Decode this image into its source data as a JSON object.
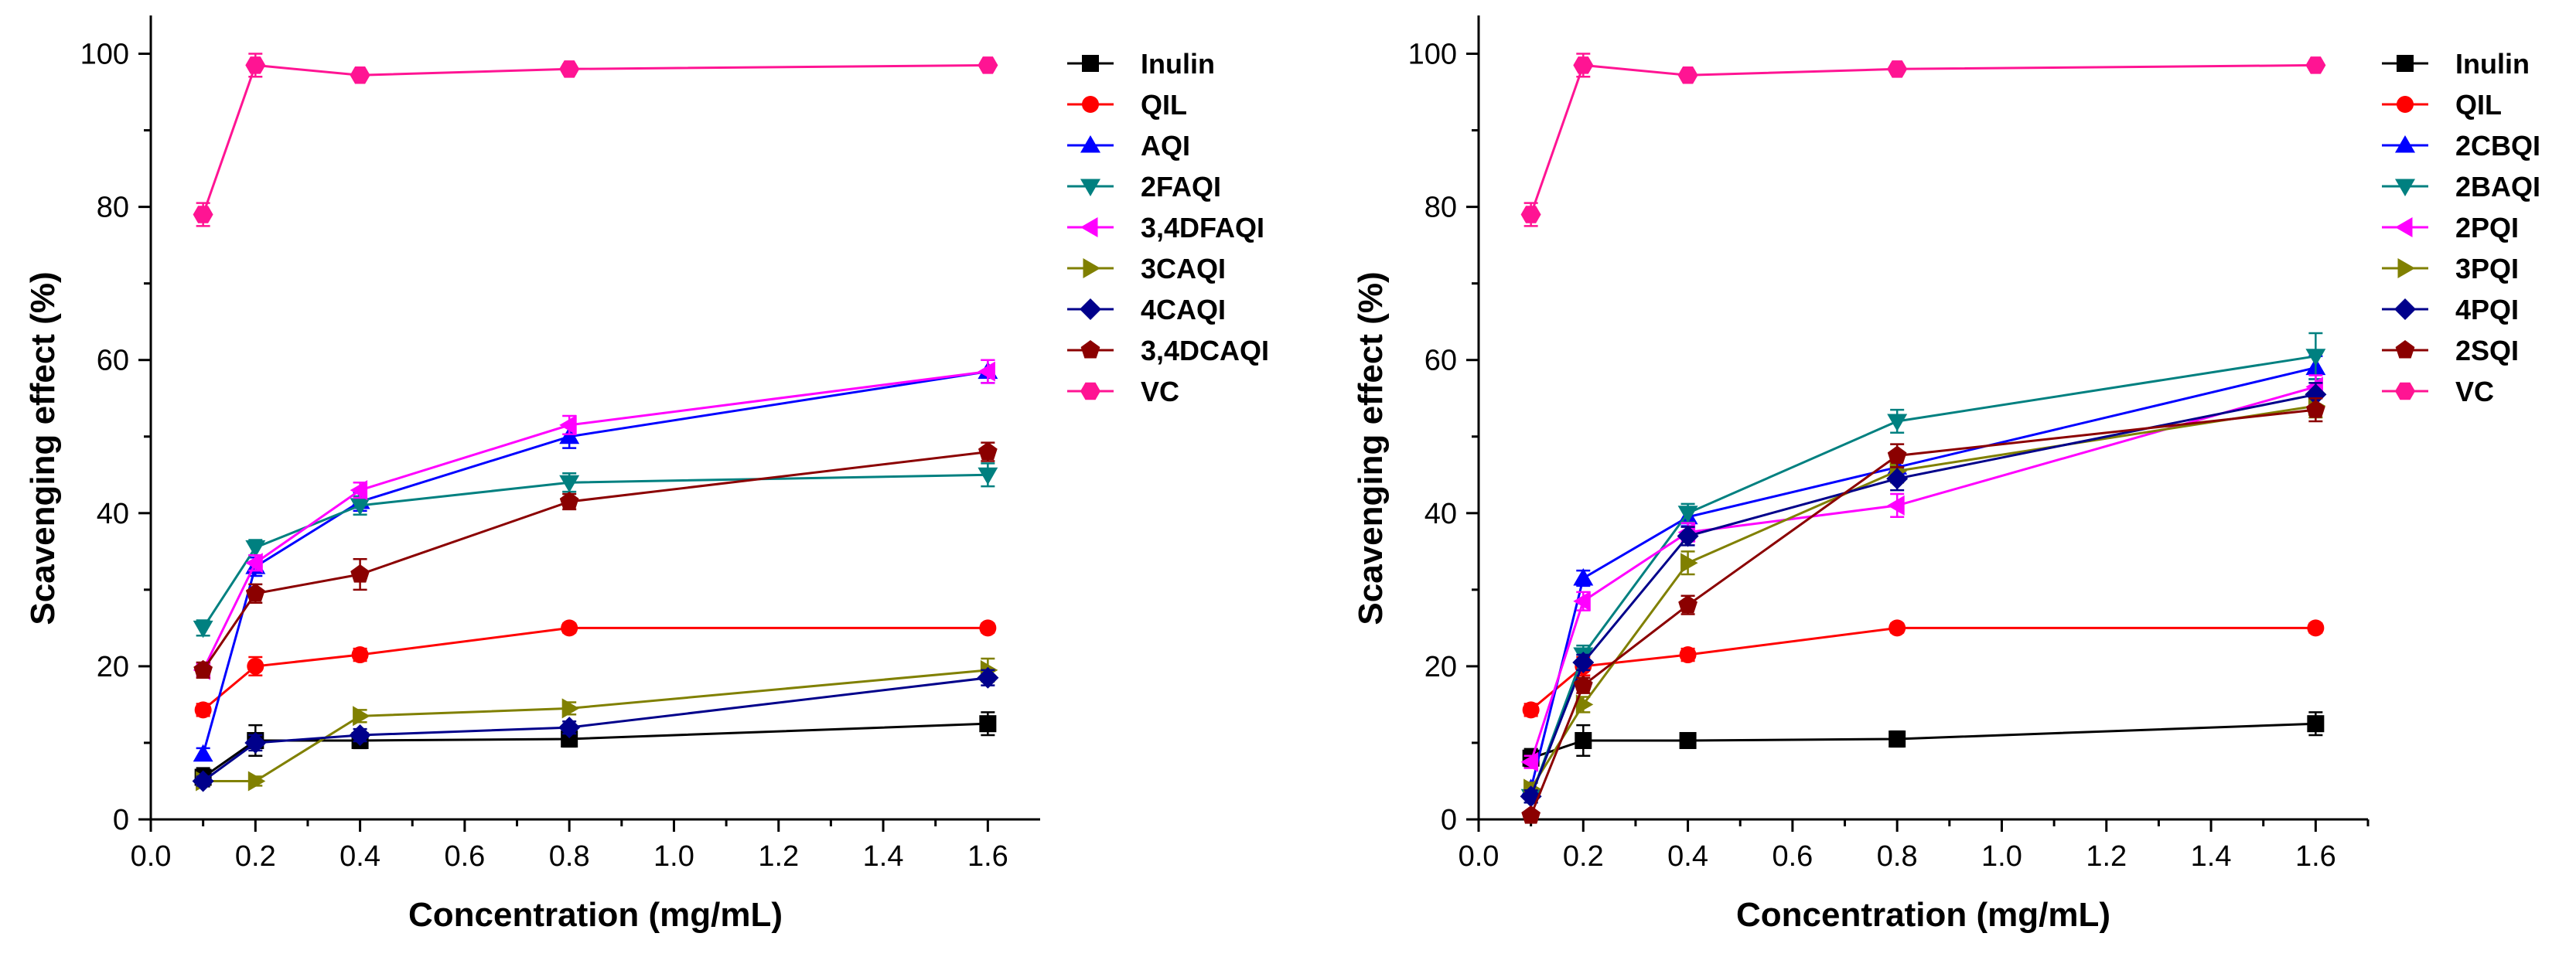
{
  "chart_data": [
    {
      "type": "line",
      "xlabel": "Concentration (mg/mL)",
      "ylabel": "Scavenging effect (%)",
      "xlim": [
        0.0,
        1.7
      ],
      "ylim": [
        0,
        105
      ],
      "xticks": [
        0.0,
        0.2,
        0.4,
        0.6,
        0.8,
        1.0,
        1.2,
        1.4,
        1.6
      ],
      "xtick_labels": [
        "0.0",
        "0.2",
        "0.4",
        "0.6",
        "0.8",
        "1.0",
        "1.2",
        "1.4",
        "1.6"
      ],
      "yticks": [
        0,
        20,
        40,
        60,
        80,
        100
      ],
      "ytick_labels": [
        "0",
        "20",
        "40",
        "60",
        "80",
        "100"
      ],
      "legend_position": "right",
      "x": [
        0.1,
        0.2,
        0.4,
        0.8,
        1.6
      ],
      "series": [
        {
          "name": "Inulin",
          "color": "#000000",
          "marker": "square",
          "values": [
            5.5,
            10.3,
            10.3,
            10.5,
            12.5
          ],
          "errors": [
            1.2,
            2.0,
            1.0,
            1.0,
            1.5
          ]
        },
        {
          "name": "QIL",
          "color": "#ff0000",
          "marker": "circle",
          "values": [
            14.3,
            20.0,
            21.5,
            25.0,
            25.0
          ],
          "errors": [
            0.8,
            1.2,
            0.8,
            0.6,
            0.6
          ]
        },
        {
          "name": "AQI",
          "color": "#0000ff",
          "marker": "triangle-up",
          "values": [
            8.5,
            33.0,
            41.5,
            50.0,
            58.5
          ],
          "errors": [
            0.8,
            1.2,
            1.2,
            1.5,
            1.5
          ]
        },
        {
          "name": "2FAQI",
          "color": "#008080",
          "marker": "triangle-down",
          "values": [
            25.0,
            35.5,
            41.0,
            44.0,
            45.0
          ],
          "errors": [
            1.0,
            1.0,
            1.2,
            1.2,
            1.5
          ]
        },
        {
          "name": "3,4DFAQI",
          "color": "#ff00ff",
          "marker": "triangle-left",
          "values": [
            19.5,
            33.5,
            43.0,
            51.5,
            58.5
          ],
          "errors": [
            0.8,
            1.0,
            1.0,
            1.2,
            1.5
          ]
        },
        {
          "name": "3CAQI",
          "color": "#808000",
          "marker": "triangle-right",
          "values": [
            5.0,
            5.0,
            13.5,
            14.5,
            19.5
          ],
          "errors": [
            0.6,
            0.6,
            0.8,
            0.8,
            1.5
          ]
        },
        {
          "name": "4CAQI",
          "color": "#00008b",
          "marker": "diamond",
          "values": [
            5.0,
            10.0,
            11.0,
            12.0,
            18.5
          ],
          "errors": [
            0.6,
            1.0,
            0.8,
            0.8,
            1.0
          ]
        },
        {
          "name": "3,4DCAQI",
          "color": "#8b0000",
          "marker": "pentagon",
          "values": [
            19.5,
            29.5,
            32.0,
            41.5,
            48.0
          ],
          "errors": [
            1.0,
            1.2,
            2.0,
            1.0,
            1.2
          ]
        },
        {
          "name": "VC",
          "color": "#ff1493",
          "marker": "hexagon",
          "values": [
            79.0,
            98.5,
            97.2,
            98.0,
            98.5
          ],
          "errors": [
            1.5,
            1.5,
            0.6,
            0.6,
            0.6
          ]
        }
      ]
    },
    {
      "type": "line",
      "xlabel": "Concentration (mg/mL)",
      "ylabel": "Scavenging effect (%)",
      "xlim": [
        0.0,
        1.7
      ],
      "ylim": [
        0,
        105
      ],
      "xticks": [
        0.0,
        0.2,
        0.4,
        0.6,
        0.8,
        1.0,
        1.2,
        1.4,
        1.6
      ],
      "xtick_labels": [
        "0.0",
        "0.2",
        "0.4",
        "0.6",
        "0.8",
        "1.0",
        "1.2",
        "1.4",
        "1.6"
      ],
      "yticks": [
        0,
        20,
        40,
        60,
        80,
        100
      ],
      "ytick_labels": [
        "0",
        "20",
        "40",
        "60",
        "80",
        "100"
      ],
      "legend_position": "right",
      "x": [
        0.1,
        0.2,
        0.4,
        0.8,
        1.6
      ],
      "series": [
        {
          "name": "Inulin",
          "color": "#000000",
          "marker": "square",
          "values": [
            8.0,
            10.3,
            10.3,
            10.5,
            12.5
          ],
          "errors": [
            1.2,
            2.0,
            0.8,
            1.0,
            1.5
          ]
        },
        {
          "name": "QIL",
          "color": "#ff0000",
          "marker": "circle",
          "values": [
            14.3,
            20.0,
            21.5,
            25.0,
            25.0
          ],
          "errors": [
            0.8,
            1.2,
            0.8,
            0.6,
            0.6
          ]
        },
        {
          "name": "2CBQI",
          "color": "#0000ff",
          "marker": "triangle-up",
          "values": [
            4.0,
            31.5,
            39.5,
            46.0,
            59.0
          ],
          "errors": [
            0.8,
            1.0,
            1.2,
            1.2,
            1.5
          ]
        },
        {
          "name": "2BAQI",
          "color": "#008080",
          "marker": "triangle-down",
          "values": [
            3.0,
            21.5,
            40.0,
            52.0,
            60.5
          ],
          "errors": [
            0.8,
            1.2,
            1.2,
            1.5,
            3.0
          ]
        },
        {
          "name": "2PQI",
          "color": "#ff00ff",
          "marker": "triangle-left",
          "values": [
            7.5,
            28.5,
            37.5,
            41.0,
            56.5
          ],
          "errors": [
            0.8,
            1.2,
            1.2,
            1.5,
            1.5
          ]
        },
        {
          "name": "3PQI",
          "color": "#808000",
          "marker": "triangle-right",
          "values": [
            4.0,
            15.0,
            33.5,
            45.5,
            54.0
          ],
          "errors": [
            0.8,
            1.0,
            1.5,
            1.5,
            1.5
          ]
        },
        {
          "name": "4PQI",
          "color": "#00008b",
          "marker": "diamond",
          "values": [
            3.0,
            20.5,
            37.0,
            44.5,
            55.5
          ],
          "errors": [
            0.8,
            1.0,
            1.2,
            1.5,
            1.5
          ]
        },
        {
          "name": "2SQI",
          "color": "#8b0000",
          "marker": "pentagon",
          "values": [
            0.5,
            17.5,
            28.0,
            47.5,
            53.5
          ],
          "errors": [
            0.5,
            1.0,
            1.2,
            1.5,
            1.5
          ]
        },
        {
          "name": "VC",
          "color": "#ff1493",
          "marker": "hexagon",
          "values": [
            79.0,
            98.5,
            97.2,
            98.0,
            98.5
          ],
          "errors": [
            1.5,
            1.5,
            0.6,
            0.6,
            0.6
          ]
        }
      ]
    }
  ]
}
